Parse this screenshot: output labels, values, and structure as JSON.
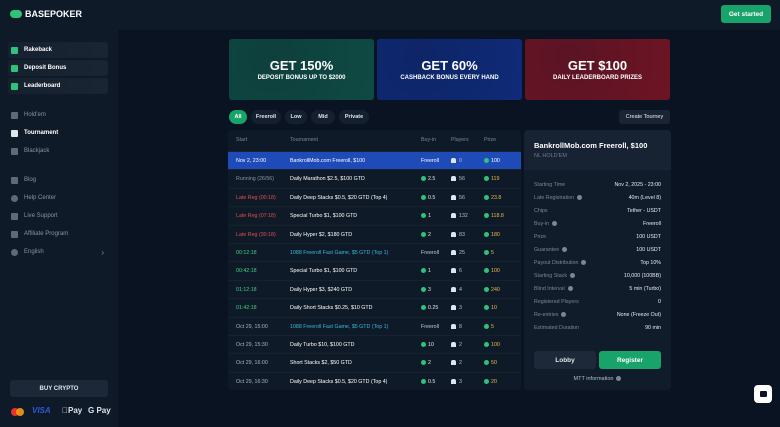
{
  "header": {
    "logo": "BASEPOKER",
    "cta": "Get started"
  },
  "sidebar": {
    "promos": [
      "Rakeback",
      "Deposit Bonus",
      "Leaderboard"
    ],
    "games": [
      "Hold'em",
      "Tournament",
      "Blackjack"
    ],
    "active": "Tournament",
    "links": [
      "Blog",
      "Help Center",
      "Live Support",
      "Affiliate Program",
      "English"
    ],
    "buy_crypto": "BUY CRYPTO",
    "payments": [
      "VISA",
      "Pay",
      "G Pay"
    ]
  },
  "banners": [
    {
      "title": "GET 150%",
      "sub": "DEPOSIT BONUS UP TO $2000",
      "color": "#0f4a44"
    },
    {
      "title": "GET 60%",
      "sub": "CASHBACK BONUS EVERY HAND",
      "color": "#0f2a78"
    },
    {
      "title": "GET $100",
      "sub": "DAILY LEADERBOARD PRIZES",
      "color": "#6e1424"
    }
  ],
  "filters": [
    "All",
    "Freeroll",
    "Low",
    "Mid",
    "Private"
  ],
  "create_tourney": "Create Tourney",
  "table": {
    "headers": [
      "Start",
      "Tournament",
      "Buy-in",
      "Players",
      "Prize"
    ],
    "rows": [
      {
        "start": "Nov 2, 23:00",
        "name": "BankrollMob.com Freeroll, $100",
        "buyin": "Freeroll",
        "players": "0",
        "prize": "100",
        "state": "selected"
      },
      {
        "start": "Running (26/56)",
        "name": "Daily Marathon $2.5, $100 GTD",
        "buyin": "2.5",
        "players": "56",
        "prize": "119",
        "state": "running"
      },
      {
        "start": "Late Reg (00:18)",
        "name": "Daily Deep Stacks $0.5, $20 GTD (Top 4)",
        "buyin": "0.5",
        "players": "56",
        "prize": "23.8",
        "state": "late"
      },
      {
        "start": "Late Reg (07:18)",
        "name": "Special Turbo $1, $100 GTD",
        "buyin": "1",
        "players": "132",
        "prize": "118.8",
        "state": "late"
      },
      {
        "start": "Late Reg (30:18)",
        "name": "Daily Hyper $2, $180 GTD",
        "buyin": "2",
        "players": "83",
        "prize": "180",
        "state": "late"
      },
      {
        "start": "00:12:18",
        "name": "1088 Freeroll Fast Game, $5 GTD (Top 1)",
        "buyin": "Freeroll",
        "players": "25",
        "prize": "5",
        "state": "soon",
        "teal": true
      },
      {
        "start": "00:42:18",
        "name": "Special Turbo $1, $100 GTD",
        "buyin": "1",
        "players": "6",
        "prize": "100",
        "state": "soon"
      },
      {
        "start": "01:12:18",
        "name": "Daily Hyper $3, $240 GTD",
        "buyin": "3",
        "players": "4",
        "prize": "240",
        "state": "soon"
      },
      {
        "start": "01:42:18",
        "name": "Daily Short Stacks $0.25, $10 GTD",
        "buyin": "0.25",
        "players": "3",
        "prize": "10",
        "state": "soon"
      },
      {
        "start": "Oct 29, 15:00",
        "name": "1088 Freeroll Fast Game, $5 GTD (Top 1)",
        "buyin": "Freeroll",
        "players": "8",
        "prize": "5",
        "state": "date",
        "teal": true
      },
      {
        "start": "Oct 29, 15:30",
        "name": "Daily Turbo $10, $100 GTD",
        "buyin": "10",
        "players": "2",
        "prize": "100",
        "state": "date"
      },
      {
        "start": "Oct 29, 16:00",
        "name": "Short Stacks $2, $50 GTD",
        "buyin": "2",
        "players": "2",
        "prize": "50",
        "state": "date"
      },
      {
        "start": "Oct 29, 16:30",
        "name": "Daily Deep Stacks $0.5, $20 GTD (Top 4)",
        "buyin": "0.5",
        "players": "3",
        "prize": "20",
        "state": "date"
      }
    ]
  },
  "details": {
    "title": "BankrollMob.com Freeroll, $100",
    "subtitle": "NL HOLD'EM",
    "fields": [
      {
        "k": "Starting Time",
        "v": "Nov 2, 2025 - 23:00",
        "q": false
      },
      {
        "k": "Late Registration",
        "v": "40m (Level 8)",
        "q": true
      },
      {
        "k": "Chips",
        "v": "Tether - USDT",
        "q": false
      },
      {
        "k": "Buy-in",
        "v": "Freeroll",
        "q": true
      },
      {
        "k": "Prize",
        "v": "100 USDT",
        "q": false
      },
      {
        "k": "Guarantee",
        "v": "100 USDT",
        "q": true
      },
      {
        "k": "Payout Distribution",
        "v": "Top 10%",
        "q": true
      },
      {
        "k": "Starting Stack",
        "v": "10,000 (100BB)",
        "q": true
      },
      {
        "k": "Blind Interval",
        "v": "5 min (Turbo)",
        "q": true
      },
      {
        "k": "Registered Players",
        "v": "0",
        "q": false
      },
      {
        "k": "Re-entries",
        "v": "None (Freeze Out)",
        "q": true
      },
      {
        "k": "Estimated Duration",
        "v": "90 min",
        "q": false
      }
    ],
    "lobby": "Lobby",
    "register": "Register",
    "info": "MTT information"
  },
  "colors": {
    "accent": "#17a36a",
    "selected": "#1f4bb8",
    "late": "#e0504f",
    "soon": "#3fcf86",
    "prize": "#e9b949",
    "teal": "#3ab8d9"
  }
}
